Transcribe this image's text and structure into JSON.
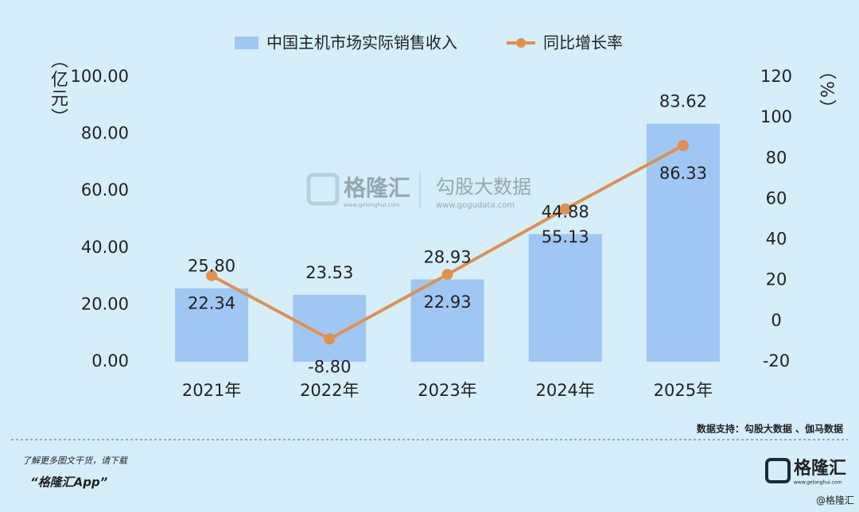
{
  "chart_data": {
    "type": "bar-line",
    "categories": [
      "2021年",
      "2022年",
      "2023年",
      "2024年",
      "2025年"
    ],
    "y_label": "（亿元）",
    "y2_label": "（%）",
    "series": [
      {
        "name": "中国主机市场实际销售收入",
        "type": "bar",
        "color": "#9fc7f3",
        "values": [
          25.8,
          23.53,
          28.93,
          44.88,
          83.62
        ],
        "value_labels": [
          "25.80",
          "23.53",
          "28.93",
          "44.88",
          "83.62"
        ]
      },
      {
        "name": "同比增长率",
        "type": "line",
        "axis": "y2",
        "color": "#e0914c",
        "values": [
          22.34,
          -8.8,
          22.93,
          55.13,
          86.33
        ],
        "value_labels": [
          "22.34",
          "-8.80",
          "22.93",
          "55.13",
          "86.33"
        ]
      }
    ],
    "ylim": [
      0,
      100
    ],
    "yticks": [
      {
        "value": 0,
        "label": "0.00"
      },
      {
        "value": 20,
        "label": "20.00"
      },
      {
        "value": 40,
        "label": "40.00"
      },
      {
        "value": 60,
        "label": "60.00"
      },
      {
        "value": 80,
        "label": "80.00"
      },
      {
        "value": 100,
        "label": "100.00"
      }
    ],
    "y2lim": [
      -20,
      120
    ],
    "y2ticks": [
      -20,
      0,
      20,
      40,
      60,
      80,
      100,
      120
    ],
    "legend": "top",
    "source": "数据支持：勾股大数据 、伽马数据"
  },
  "watermark": {
    "brand": "格隆汇",
    "brand_url": "www.gelonghui.com",
    "partner": "勾股大数据",
    "partner_url": "www.gogudata.com"
  },
  "footer": {
    "line1": "了解更多图文干货，请下载",
    "line2": "“格隆汇App”",
    "logo": "格隆汇",
    "logo_url": "www.gelonghui.com",
    "corner": "@格隆汇"
  }
}
